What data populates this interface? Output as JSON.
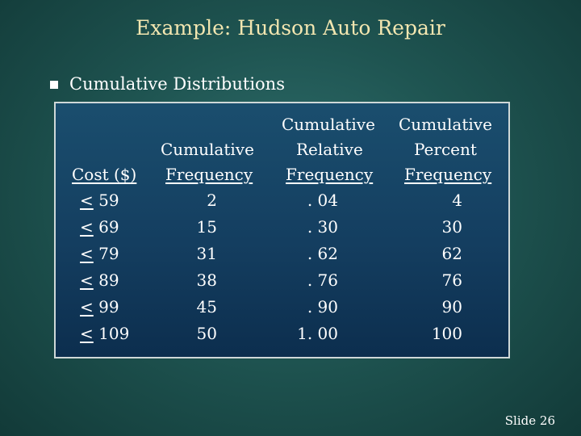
{
  "title": "Example:  Hudson Auto Repair",
  "bullet": {
    "icon": "square-bullet-icon",
    "text": "Cumulative Distributions"
  },
  "table": {
    "headers": {
      "cost": {
        "line3": "Cost ($)"
      },
      "cum_freq": {
        "line2": "Cumulative",
        "line3": "Frequency"
      },
      "cum_rel_freq": {
        "line1": "Cumulative",
        "line2": "Relative",
        "line3": "Frequency"
      },
      "cum_pct_freq": {
        "line1": "Cumulative",
        "line2": "Percent",
        "line3": "Frequency"
      }
    },
    "rows": [
      {
        "cost": "59",
        "cum_freq": "2",
        "cum_rel": ". 04",
        "cum_pct": "4"
      },
      {
        "cost": "69",
        "cum_freq": "15",
        "cum_rel": ". 30",
        "cum_pct": "30"
      },
      {
        "cost": "79",
        "cum_freq": "31",
        "cum_rel": ". 62",
        "cum_pct": "62"
      },
      {
        "cost": "89",
        "cum_freq": "38",
        "cum_rel": ". 76",
        "cum_pct": "76"
      },
      {
        "cost": "99",
        "cum_freq": "45",
        "cum_rel": ". 90",
        "cum_pct": "90"
      },
      {
        "cost": "109",
        "cum_freq": "50",
        "cum_rel": "1. 00",
        "cum_pct": "100"
      }
    ],
    "le_symbol": "<"
  },
  "slide_number": "Slide 26",
  "colors": {
    "title": "#f2e6b0",
    "text": "#ffffff",
    "table_bg": "#143e60",
    "slide_bg": "#1f5552"
  }
}
